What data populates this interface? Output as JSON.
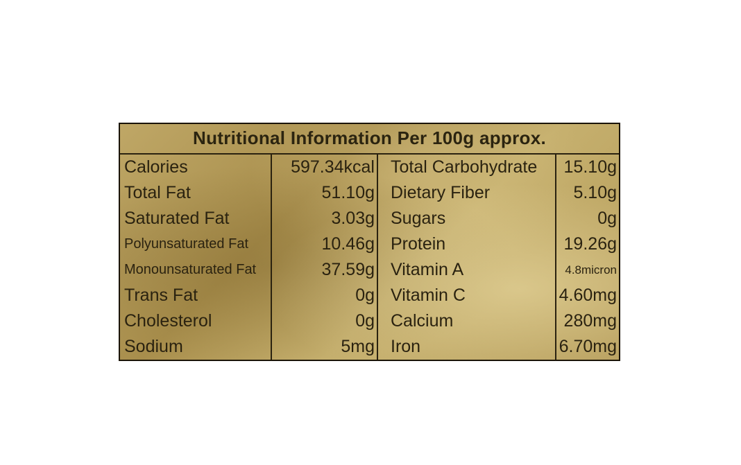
{
  "label": {
    "title": "Nutritional Information Per 100g approx.",
    "rows": [
      {
        "left_name": "Calories",
        "left_value": "597.34kcal",
        "right_name": "Total Carbohydrate",
        "right_value": "15.10g"
      },
      {
        "left_name": "Total Fat",
        "left_value": "51.10g",
        "right_name": "Dietary Fiber",
        "right_value": "5.10g"
      },
      {
        "left_name": "Saturated Fat",
        "left_value": "3.03g",
        "right_name": "Sugars",
        "right_value": "0g"
      },
      {
        "left_name": "Polyunsaturated Fat",
        "left_value": "10.46g",
        "right_name": "Protein",
        "right_value": "19.26g"
      },
      {
        "left_name": "Monounsaturated Fat",
        "left_value": "37.59g",
        "right_name": "Vitamin A",
        "right_value": "4.8micron"
      },
      {
        "left_name": "Trans Fat",
        "left_value": "0g",
        "right_name": "Vitamin C",
        "right_value": "4.60mg"
      },
      {
        "left_name": "Cholesterol",
        "left_value": "0g",
        "right_name": "Calcium",
        "right_value": "280mg"
      },
      {
        "left_name": "Sodium",
        "left_value": "5mg",
        "right_name": "Iron",
        "right_value": "6.70mg"
      }
    ]
  }
}
